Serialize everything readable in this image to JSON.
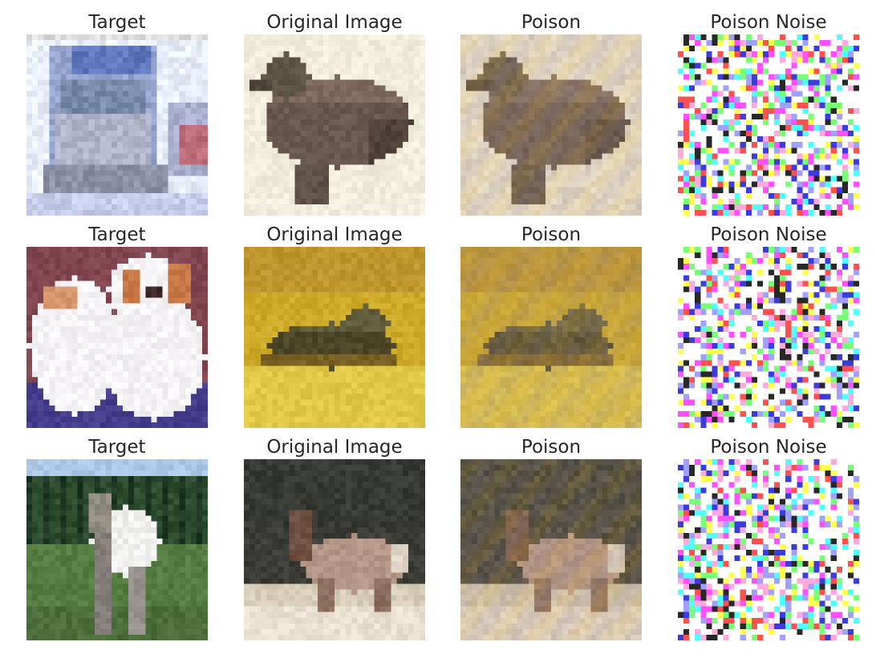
{
  "rows": [
    {
      "row_name": "row-1",
      "subject_target": "truck",
      "subject_original": "duck",
      "cells": [
        {
          "title": "Target",
          "kind": "target"
        },
        {
          "title": "Original Image",
          "kind": "original"
        },
        {
          "title": "Poison",
          "kind": "poison"
        },
        {
          "title": "Poison Noise",
          "kind": "noise"
        }
      ]
    },
    {
      "row_name": "row-2",
      "subject_target": "dog",
      "subject_original": "frog",
      "cells": [
        {
          "title": "Target",
          "kind": "target"
        },
        {
          "title": "Original Image",
          "kind": "original"
        },
        {
          "title": "Poison",
          "kind": "poison"
        },
        {
          "title": "Poison Noise",
          "kind": "noise"
        }
      ]
    },
    {
      "row_name": "row-3",
      "subject_target": "horse",
      "subject_original": "deer",
      "cells": [
        {
          "title": "Target",
          "kind": "target"
        },
        {
          "title": "Original Image",
          "kind": "original"
        },
        {
          "title": "Poison",
          "kind": "poison"
        },
        {
          "title": "Poison Noise",
          "kind": "noise"
        }
      ]
    }
  ]
}
